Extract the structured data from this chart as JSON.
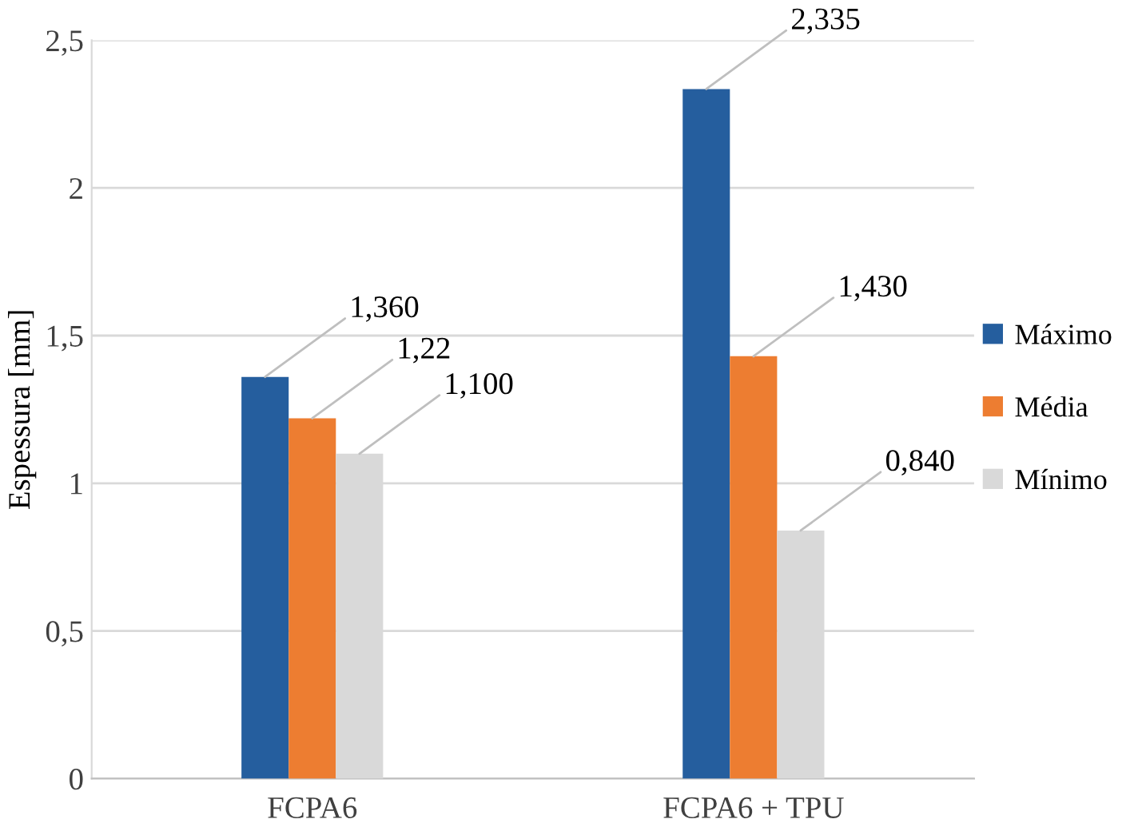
{
  "chart_data": {
    "type": "bar",
    "ylabel": "Espessura [mm]",
    "categories": [
      "FCPA6",
      "FCPA6 + TPU"
    ],
    "series": [
      {
        "name": "Máximo",
        "color": "#255e9e",
        "values": [
          1.36,
          2.335
        ],
        "value_labels": [
          "1,360",
          "2,335"
        ]
      },
      {
        "name": "Média",
        "color": "#ed7d31",
        "values": [
          1.22,
          1.43
        ],
        "value_labels": [
          "1,22",
          "1,430"
        ]
      },
      {
        "name": "Mínimo",
        "color": "#d9d9d9",
        "values": [
          1.1,
          0.84
        ],
        "value_labels": [
          "1,100",
          "0,840"
        ]
      }
    ],
    "ylim": [
      0,
      2.5
    ],
    "yticks": [
      0,
      {
        "value": 0.5,
        "label": "0,5"
      },
      1,
      {
        "value": 1.5,
        "label": "1,5"
      },
      2,
      {
        "value": 2.5,
        "label": "2,5"
      }
    ],
    "grid": "y",
    "legend": "right"
  }
}
